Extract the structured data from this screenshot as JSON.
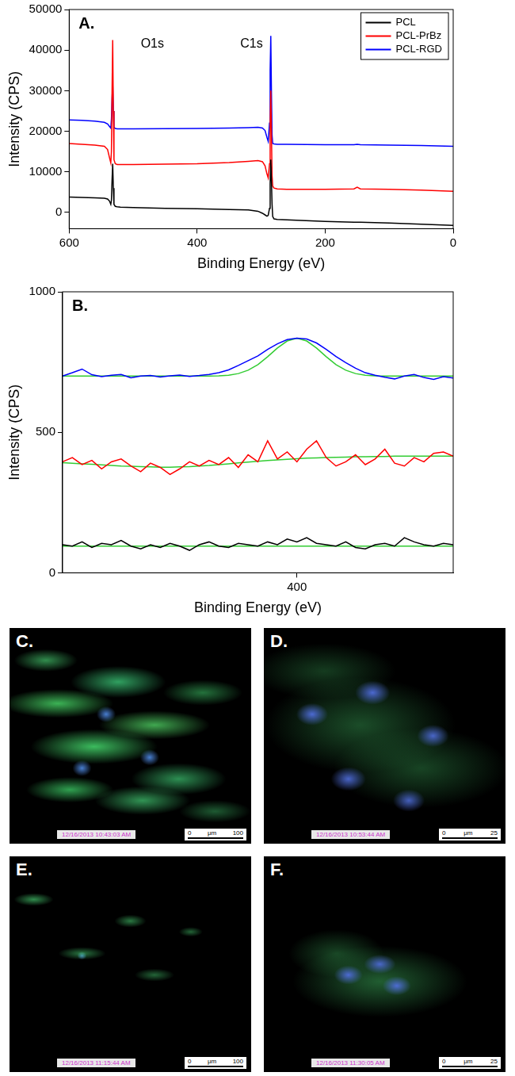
{
  "chart_data": [
    {
      "type": "line",
      "title": "A.",
      "x_label": "Binding Energy (eV)",
      "y_label": "Intensity (CPS)",
      "xlim": [
        600,
        0
      ],
      "xticks": [
        600,
        400,
        200,
        0
      ],
      "ylim": [
        -4000,
        50000
      ],
      "yticks": [
        0,
        10000,
        20000,
        30000,
        40000,
        50000
      ],
      "grid": false,
      "legend": "upper right",
      "annotations": [
        {
          "text": "O1s",
          "x": 470,
          "y": 41500
        },
        {
          "text": "C1s",
          "x": 315,
          "y": 41500
        }
      ],
      "x": [
        600,
        580,
        560,
        545,
        540,
        537,
        535,
        534,
        533,
        532,
        531,
        530,
        528,
        525,
        520,
        500,
        450,
        400,
        350,
        320,
        305,
        298,
        294,
        291,
        289,
        287,
        286,
        285,
        284,
        283,
        282,
        280,
        275,
        260,
        200,
        155,
        150,
        145,
        100,
        50,
        0
      ],
      "series": [
        {
          "name": "PCL",
          "color": "#000000",
          "values": [
            3800,
            3700,
            3600,
            3500,
            3300,
            2800,
            2000,
            3000,
            8000,
            12000,
            6000,
            2000,
            1500,
            1400,
            1300,
            1200,
            1000,
            900,
            700,
            600,
            300,
            -200,
            -600,
            -900,
            -700,
            1000,
            7000,
            13000,
            8000,
            2000,
            -1000,
            -1600,
            -1700,
            -1800,
            -2200,
            -2400,
            -2400,
            -2400,
            -2600,
            -2900,
            -3200
          ]
        },
        {
          "name": "PCL-PrBz",
          "color": "#ff0000",
          "values": [
            17000,
            16800,
            16600,
            16300,
            15500,
            13500,
            12200,
            15000,
            30000,
            42500,
            25000,
            13000,
            12000,
            11800,
            11800,
            11800,
            11900,
            12000,
            12300,
            12600,
            12800,
            12500,
            11500,
            9500,
            8500,
            12000,
            22000,
            30000,
            20000,
            9000,
            6500,
            6000,
            5800,
            5700,
            5700,
            5800,
            6200,
            5800,
            5700,
            5500,
            5200
          ]
        },
        {
          "name": "PCL-RGD",
          "color": "#0000ff",
          "values": [
            22800,
            22700,
            22500,
            22200,
            21800,
            21200,
            20800,
            23000,
            28000,
            31500,
            25000,
            21000,
            20700,
            20600,
            20600,
            20600,
            20650,
            20700,
            20800,
            20900,
            21000,
            20800,
            20200,
            18500,
            17500,
            22000,
            35000,
            43500,
            30000,
            19000,
            17000,
            16900,
            16800,
            16800,
            16700,
            16700,
            16800,
            16700,
            16600,
            16500,
            16300
          ]
        }
      ]
    },
    {
      "type": "line",
      "title": "B.",
      "x_label": "Binding Energy (eV)",
      "y_label": "Intensity (CPS)",
      "xlim": [
        412,
        392
      ],
      "xticks": [
        400
      ],
      "ylim": [
        0,
        1000
      ],
      "yticks": [
        0,
        500,
        1000
      ],
      "grid": false,
      "x": [
        412,
        411.5,
        411,
        410.5,
        410,
        409.5,
        409,
        408.5,
        408,
        407.5,
        407,
        406.5,
        406,
        405.5,
        405,
        404.5,
        404,
        403.5,
        403,
        402.5,
        402,
        401.5,
        401,
        400.5,
        400,
        399.5,
        399,
        398.5,
        398,
        397.5,
        397,
        396.5,
        396,
        395.5,
        395,
        394.5,
        394,
        393.5,
        393,
        392.5,
        392
      ],
      "series": [
        {
          "color": "#000000",
          "values": [
            100,
            95,
            110,
            90,
            105,
            100,
            115,
            95,
            85,
            100,
            90,
            105,
            95,
            80,
            100,
            110,
            95,
            90,
            105,
            100,
            95,
            110,
            100,
            120,
            110,
            125,
            105,
            100,
            95,
            110,
            90,
            85,
            100,
            105,
            95,
            125,
            110,
            100,
            95,
            105,
            100
          ]
        },
        {
          "color": "#33cc33",
          "values": [
            95,
            95,
            95,
            95,
            95,
            95,
            95,
            95,
            95,
            95,
            95,
            95,
            95,
            95,
            95,
            95,
            95,
            95,
            95,
            95,
            95,
            95,
            95,
            95,
            95,
            95,
            95,
            95,
            95,
            95,
            95,
            95,
            95,
            95,
            95,
            95,
            95,
            95,
            95,
            95,
            95
          ]
        },
        {
          "color": "#ff0000",
          "values": [
            395,
            410,
            385,
            400,
            370,
            395,
            405,
            380,
            360,
            390,
            375,
            350,
            370,
            395,
            380,
            400,
            385,
            410,
            375,
            420,
            395,
            470,
            405,
            430,
            395,
            440,
            470,
            410,
            380,
            395,
            420,
            385,
            405,
            440,
            390,
            380,
            410,
            395,
            425,
            430,
            415
          ]
        },
        {
          "color": "#33cc33",
          "values": [
            392,
            390,
            388,
            386,
            384,
            382,
            380,
            379,
            378,
            377,
            376,
            376,
            377,
            378,
            380,
            382,
            385,
            388,
            391,
            394,
            397,
            400,
            402,
            404,
            406,
            408,
            409,
            410,
            411,
            412,
            413,
            413,
            414,
            414,
            415,
            415,
            415,
            415,
            415,
            415,
            415
          ]
        },
        {
          "color": "#0000ff",
          "values": [
            700,
            712,
            725,
            705,
            698,
            703,
            706,
            694,
            700,
            702,
            697,
            701,
            704,
            699,
            702,
            706,
            712,
            722,
            738,
            755,
            772,
            795,
            815,
            830,
            835,
            832,
            818,
            795,
            770,
            748,
            728,
            712,
            703,
            696,
            690,
            700,
            706,
            695,
            688,
            698,
            693
          ]
        },
        {
          "color": "#33cc33",
          "values": [
            700,
            700,
            700,
            700,
            700,
            700,
            700,
            700,
            700,
            700,
            700,
            700,
            700,
            700,
            700,
            700,
            701,
            703,
            709,
            721,
            741,
            769,
            800,
            825,
            835,
            825,
            800,
            769,
            741,
            721,
            709,
            703,
            701,
            700,
            700,
            700,
            700,
            700,
            700,
            700,
            700
          ]
        }
      ]
    }
  ],
  "images": [
    {
      "label": "C.",
      "timestamp": "12/16/2013 10:43:03 AM",
      "scale_bar": {
        "start": 0,
        "unit": "μm",
        "end": 100
      }
    },
    {
      "label": "D.",
      "timestamp": "12/16/2013 10:53:44 AM",
      "scale_bar": {
        "start": 0,
        "unit": "μm",
        "end": 25
      }
    },
    {
      "label": "E.",
      "timestamp": "12/16/2013 11:15:44 AM",
      "scale_bar": {
        "start": 0,
        "unit": "μm",
        "end": 100
      }
    },
    {
      "label": "F.",
      "timestamp": "12/16/2013 11:30:05 AM",
      "scale_bar": {
        "start": 0,
        "unit": "μm",
        "end": 25
      }
    }
  ]
}
